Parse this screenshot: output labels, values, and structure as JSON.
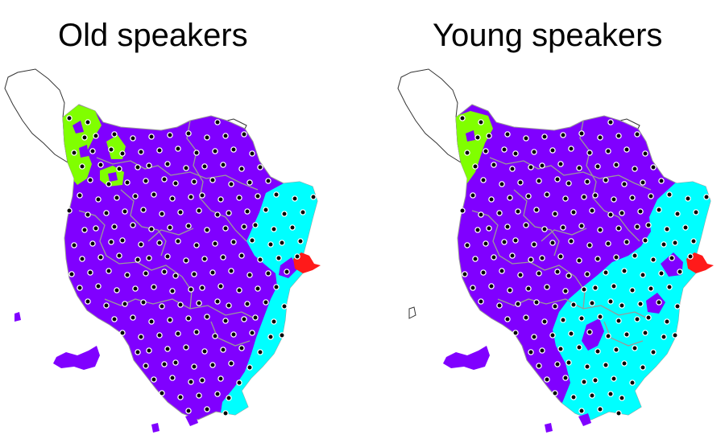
{
  "colors": {
    "dominant": "#8000ff",
    "eastern": "#00ffff",
    "northwest": "#80ff00",
    "coastal": "#ff1a1a",
    "outline_gray": "#9a9a9a",
    "outline_white_region": "#333333",
    "site_dot": "#000000",
    "site_ring": "#ffffff"
  },
  "maps": [
    {
      "title": "Old speakers"
    },
    {
      "title": "Young speakers"
    }
  ]
}
